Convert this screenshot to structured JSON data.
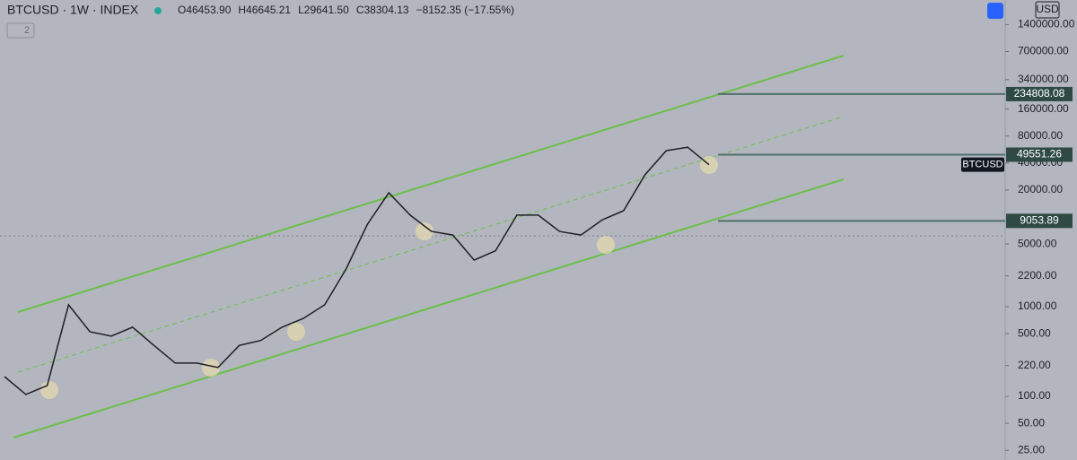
{
  "chart_data": {
    "type": "line",
    "title": "BTCUSD · 1W · INDEX",
    "ohlc": [
      "O46453.90",
      "H46645.21",
      "L29641.50",
      "C38304.13",
      "−8152.35 (−17.55%)"
    ],
    "indicator_count": "2",
    "currency": "USD",
    "symbol_tag": "BTCUSD",
    "log_scale": true,
    "color": "#1e1f24",
    "categories": [
      null,
      null,
      null,
      null,
      null,
      null,
      null,
      null,
      null,
      null,
      null,
      null,
      null,
      null,
      null,
      null,
      null,
      null,
      null,
      null,
      null,
      null,
      null,
      null,
      null,
      null,
      null,
      null,
      null,
      null,
      null,
      null,
      null,
      null
    ],
    "values": [
      166,
      105,
      132,
      1050,
      525,
      470,
      590,
      370,
      235,
      235,
      210,
      370,
      420,
      590,
      740,
      1050,
      2630,
      8300,
      18600,
      10500,
      6900,
      6300,
      3300,
      4200,
      10500,
      10500,
      6900,
      6300,
      9300,
      11750,
      29500,
      55000,
      60000,
      38304.13
    ],
    "ylim": [
      19.5,
      2630000
    ],
    "yticks": [
      {
        "value": 1400000,
        "label": "1400000.00"
      },
      {
        "value": 700000,
        "label": "700000.00"
      },
      {
        "value": 340000,
        "label": "340000.00"
      },
      {
        "value": 160000,
        "label": "160000.00"
      },
      {
        "value": 80000,
        "label": "80000.00"
      },
      {
        "value": 40000,
        "label": "40000.00"
      },
      {
        "value": 20000,
        "label": "20000.00"
      },
      {
        "value": 5000,
        "label": "5000.00"
      },
      {
        "value": 2200,
        "label": "2200.00"
      },
      {
        "value": 1000,
        "label": "1000.00"
      },
      {
        "value": 500,
        "label": "500.00"
      },
      {
        "value": 220,
        "label": "220.00"
      },
      {
        "value": 100,
        "label": "100.00"
      },
      {
        "value": 50,
        "label": "50.00"
      },
      {
        "value": 25,
        "label": "25.00"
      }
    ],
    "levels": [
      234808.08,
      49551.26,
      9053.89
    ]
  }
}
